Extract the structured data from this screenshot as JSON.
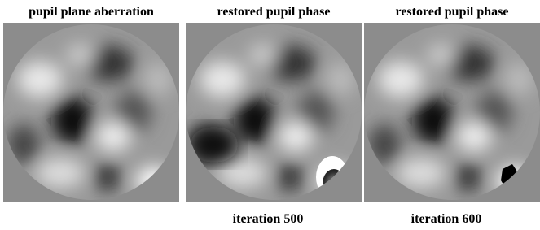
{
  "panels": [
    {
      "title": "pupil plane aberration"
    },
    {
      "title": "restored pupil phase",
      "caption": "iteration 500"
    },
    {
      "title": "restored pupil phase",
      "caption": "iteration 600"
    }
  ]
}
